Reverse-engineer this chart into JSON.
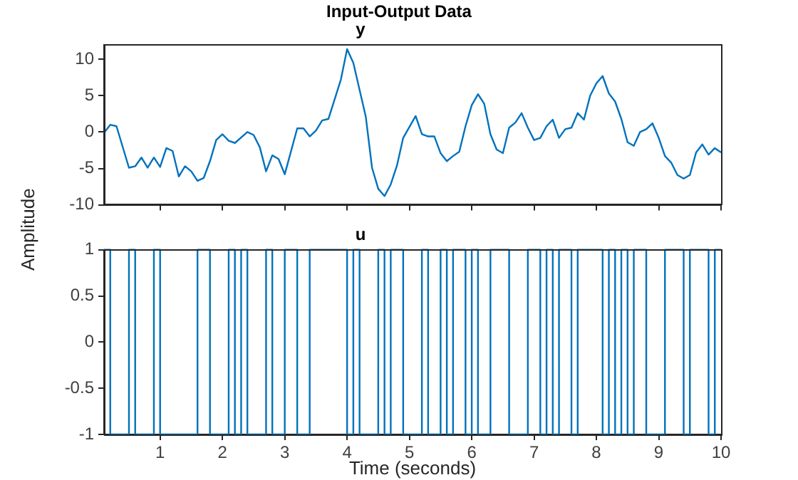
{
  "chart_data": [
    {
      "type": "line",
      "title": "y",
      "annotations": [
        "Input-Output Data"
      ],
      "ylabel": "Amplitude",
      "color": "#0072bd",
      "x": [
        0.1,
        0.2,
        0.3,
        0.5,
        0.6,
        0.7,
        0.8,
        0.9,
        1.0,
        1.1,
        1.2,
        1.3,
        1.4,
        1.5,
        1.6,
        1.7,
        1.8,
        1.9,
        2.0,
        2.1,
        2.2,
        2.4,
        2.5,
        2.6,
        2.7,
        2.8,
        2.9,
        3.0,
        3.2,
        3.3,
        3.4,
        3.5,
        3.6,
        3.7,
        3.9,
        4.0,
        4.1,
        4.3,
        4.4,
        4.5,
        4.6,
        4.7,
        4.8,
        4.9,
        5.1,
        5.2,
        5.3,
        5.4,
        5.5,
        5.6,
        5.7,
        5.8,
        5.9,
        6.0,
        6.1,
        6.2,
        6.3,
        6.4,
        6.5,
        6.6,
        6.7,
        6.8,
        6.9,
        7.0,
        7.1,
        7.2,
        7.3,
        7.4,
        7.5,
        7.6,
        7.7,
        7.8,
        7.9,
        8.0,
        8.1,
        8.2,
        8.3,
        8.4,
        8.5,
        8.6,
        8.7,
        8.8,
        8.9,
        9.0,
        9.1,
        9.2,
        9.3,
        9.4,
        9.5,
        9.6,
        9.7,
        9.8,
        9.9,
        10.0
      ],
      "values": [
        -0.1,
        1.0,
        0.8,
        -4.9,
        -4.7,
        -3.5,
        -4.9,
        -3.5,
        -4.8,
        -2.2,
        -2.6,
        -6.1,
        -4.7,
        -5.4,
        -6.7,
        -6.3,
        -4.0,
        -1.1,
        -0.3,
        -1.2,
        -1.5,
        0,
        -0.4,
        -2.1,
        -5.4,
        -3.2,
        -3.7,
        -5.8,
        0.5,
        0.5,
        -0.6,
        0.2,
        1.6,
        1.8,
        7.2,
        11.4,
        9.5,
        2.1,
        -4.9,
        -7.8,
        -8.8,
        -7.2,
        -4.6,
        -0.8,
        2.2,
        -0.3,
        -0.6,
        -0.6,
        -2.9,
        -4.0,
        -3.3,
        -2.7,
        0.8,
        3.7,
        5.2,
        3.9,
        -0.3,
        -2.4,
        -2.9,
        0.6,
        1.3,
        2.6,
        0.6,
        -1.1,
        -0.8,
        0.8,
        1.7,
        -0.8,
        0.4,
        0.6,
        2.6,
        1.7,
        5.0,
        6.7,
        7.7,
        5.3,
        4.2,
        1.8,
        -1.4,
        -1.9,
        0,
        0.4,
        1.2,
        -0.8,
        -3.3,
        -4.2,
        -5.9,
        -6.4,
        -5.9,
        -2.8,
        -1.7,
        -3.1,
        -2.2,
        -2.8
      ],
      "xlim": [
        0.1,
        10
      ],
      "xticks": [
        1,
        2,
        3,
        4,
        5,
        6,
        7,
        8,
        9,
        10
      ],
      "ylim": [
        -10,
        12
      ],
      "yticks": [
        -10,
        -5,
        0,
        5,
        10
      ],
      "tick_labels": "y"
    },
    {
      "type": "step",
      "title": "u",
      "xlabel": "Time (seconds)",
      "color": "#0072bd",
      "x": [
        0.1,
        0.2,
        0.5,
        0.6,
        0.9,
        1.0,
        1.6,
        1.8,
        2.1,
        2.2,
        2.3,
        2.4,
        2.7,
        2.8,
        3.0,
        3.2,
        3.4,
        4.0,
        4.1,
        4.2,
        4.5,
        4.6,
        4.7,
        4.9,
        5.2,
        5.3,
        5.5,
        5.6,
        5.7,
        5.9,
        6.0,
        6.1,
        6.3,
        6.6,
        6.9,
        7.1,
        7.2,
        7.3,
        7.4,
        7.6,
        7.7,
        8.1,
        8.2,
        8.3,
        8.4,
        8.5,
        8.6,
        8.8,
        9.1,
        9.4,
        9.5,
        9.8,
        9.9,
        10.0
      ],
      "values": [
        1,
        -1,
        1,
        -1,
        1,
        -1,
        1,
        -1,
        1,
        -1,
        1,
        -1,
        1,
        -1,
        1,
        -1,
        1,
        -1,
        1,
        -1,
        1,
        -1,
        1,
        -1,
        1,
        -1,
        1,
        -1,
        1,
        -1,
        1,
        -1,
        1,
        -1,
        1,
        -1,
        1,
        -1,
        1,
        -1,
        1,
        -1,
        1,
        -1,
        1,
        -1,
        1,
        -1,
        1,
        -1,
        1,
        -1,
        1,
        1
      ],
      "xlim": [
        0.1,
        10
      ],
      "xticks": [
        1,
        2,
        3,
        4,
        5,
        6,
        7,
        8,
        9,
        10
      ],
      "ylim": [
        -1,
        1
      ],
      "yticks": [
        -1,
        -0.5,
        0,
        0.5,
        1
      ]
    }
  ]
}
